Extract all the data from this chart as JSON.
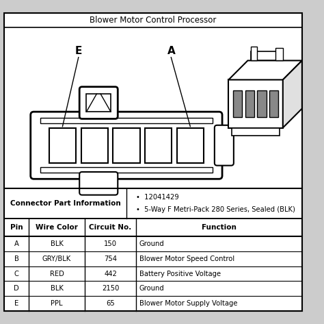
{
  "title": "Blower Motor Control Processor",
  "background_color": "#e8e8e8",
  "border_color": "#000000",
  "connector_info_label": "Connector Part Information",
  "connector_info_bullets": [
    "12041429",
    "5-Way F Metri-Pack 280 Series, Sealed (BLK)"
  ],
  "table_headers": [
    "Pin",
    "Wire Color",
    "Circuit No.",
    "Function"
  ],
  "table_rows": [
    [
      "A",
      "BLK",
      "150",
      "Ground"
    ],
    [
      "B",
      "GRY/BLK",
      "754",
      "Blower Motor Speed Control"
    ],
    [
      "C",
      "RED",
      "442",
      "Battery Positive Voltage"
    ],
    [
      "D",
      "BLK",
      "2150",
      "Ground"
    ],
    [
      "E",
      "PPL",
      "65",
      "Blower Motor Supply Voltage"
    ]
  ]
}
